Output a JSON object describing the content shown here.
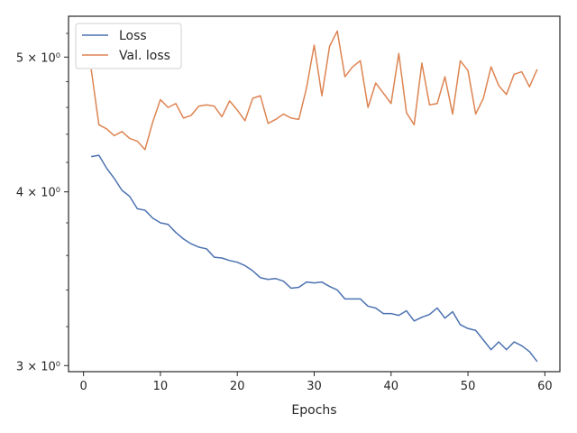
{
  "chart_data": {
    "type": "line",
    "title": "",
    "xlabel": "Epochs",
    "ylabel": "",
    "xlim": [
      -1.95,
      61.95
    ],
    "ylim": [
      2.97,
      5.35
    ],
    "yscale": "log",
    "grid": false,
    "legend_position": "top-left",
    "x_ticks": [
      0,
      10,
      20,
      30,
      40,
      50,
      60
    ],
    "x_tick_labels": [
      "0",
      "10",
      "20",
      "30",
      "40",
      "50",
      "60"
    ],
    "y_ticks": [
      3,
      4,
      5
    ],
    "y_tick_labels": [
      "3 × 10⁰",
      "4 × 10⁰",
      "5 × 10⁰"
    ],
    "x": [
      1,
      2,
      3,
      4,
      5,
      6,
      7,
      8,
      9,
      10,
      11,
      12,
      13,
      14,
      15,
      16,
      17,
      18,
      19,
      20,
      21,
      22,
      23,
      24,
      25,
      26,
      27,
      28,
      29,
      30,
      31,
      32,
      33,
      34,
      35,
      36,
      37,
      38,
      39,
      40,
      41,
      42,
      43,
      44,
      45,
      46,
      47,
      48,
      49,
      50,
      51,
      52,
      53,
      54,
      55,
      56,
      57,
      58,
      59
    ],
    "series": [
      {
        "name": "Loss",
        "color": "#4c72b0",
        "values": [
          4.24,
          4.25,
          4.16,
          4.09,
          4.01,
          3.97,
          3.89,
          3.88,
          3.83,
          3.8,
          3.79,
          3.74,
          3.7,
          3.67,
          3.65,
          3.64,
          3.59,
          3.585,
          3.57,
          3.56,
          3.54,
          3.51,
          3.47,
          3.46,
          3.465,
          3.45,
          3.41,
          3.415,
          3.445,
          3.44,
          3.445,
          3.42,
          3.4,
          3.35,
          3.35,
          3.35,
          3.31,
          3.3,
          3.27,
          3.27,
          3.26,
          3.285,
          3.23,
          3.25,
          3.265,
          3.3,
          3.245,
          3.28,
          3.21,
          3.19,
          3.18,
          3.13,
          3.08,
          3.12,
          3.08,
          3.12,
          3.1,
          3.07,
          3.02
        ]
      },
      {
        "name": "Val. loss",
        "color": "#dd8452",
        "values": [
          4.9,
          4.47,
          4.44,
          4.39,
          4.42,
          4.37,
          4.35,
          4.29,
          4.49,
          4.66,
          4.6,
          4.63,
          4.52,
          4.54,
          4.61,
          4.62,
          4.61,
          4.53,
          4.65,
          4.58,
          4.5,
          4.67,
          4.69,
          4.48,
          4.51,
          4.55,
          4.52,
          4.51,
          4.75,
          5.1,
          4.69,
          5.09,
          5.22,
          4.84,
          4.92,
          4.97,
          4.6,
          4.79,
          4.71,
          4.63,
          5.03,
          4.56,
          4.47,
          4.95,
          4.62,
          4.63,
          4.84,
          4.55,
          4.97,
          4.89,
          4.55,
          4.67,
          4.92,
          4.77,
          4.7,
          4.86,
          4.88,
          4.76,
          4.9
        ]
      }
    ]
  }
}
